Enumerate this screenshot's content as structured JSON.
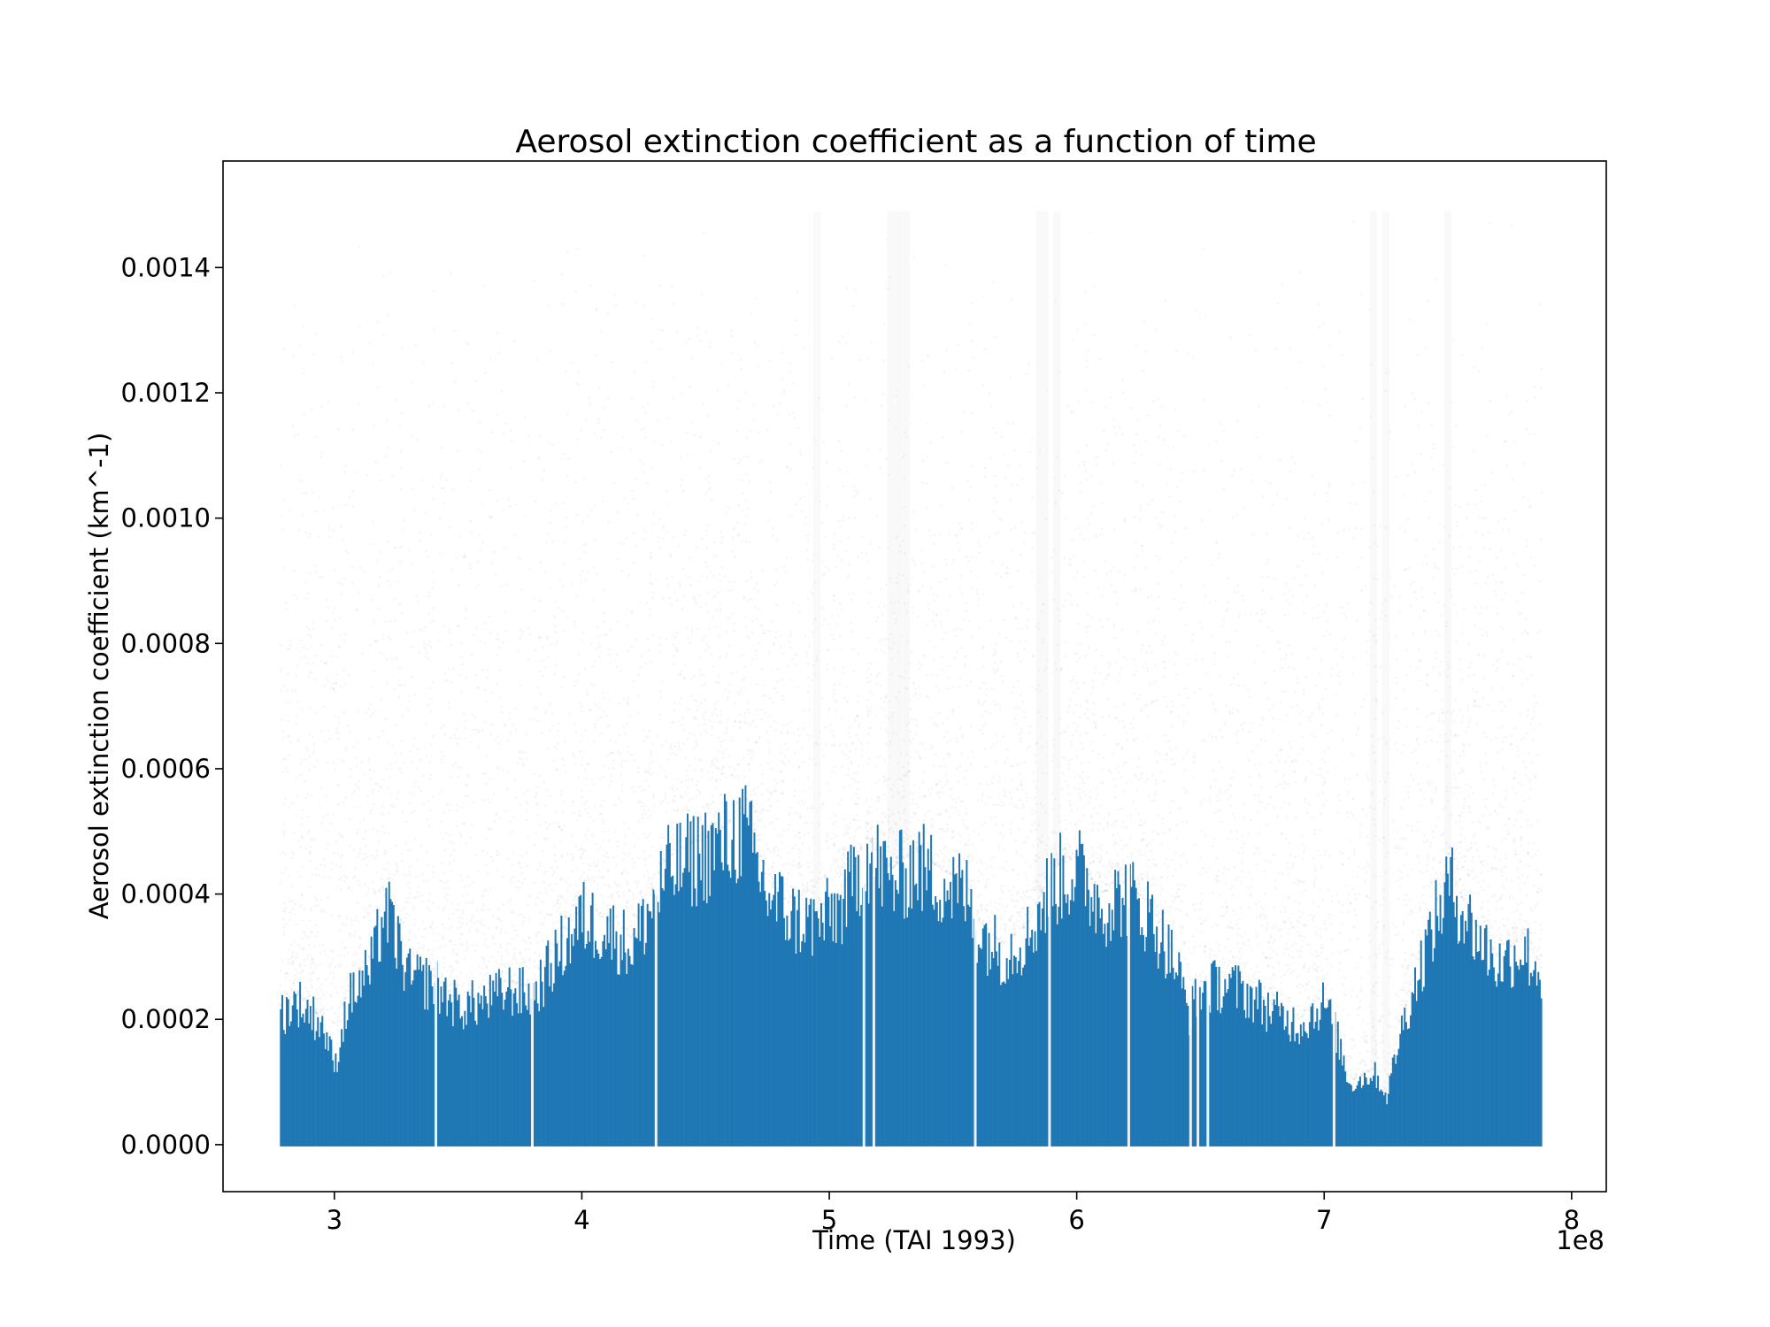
{
  "chart_data": {
    "type": "scatter",
    "title": "Aerosol extinction coefficient as a function of time",
    "xlabel": "Time (TAI 1993)",
    "ylabel": "Aerosol extinction coefficient (km^-1)",
    "x_offset_text": "1e8",
    "xlim": [
      2.55,
      8.14
    ],
    "ylim": [
      -7.5e-05,
      0.00157
    ],
    "x_ticks": [
      3,
      4,
      5,
      6,
      7,
      8
    ],
    "x_tick_labels": [
      "3",
      "4",
      "5",
      "6",
      "7",
      "8"
    ],
    "y_ticks": [
      0.0,
      0.0002,
      0.0004,
      0.0006,
      0.0008,
      0.001,
      0.0012,
      0.0014
    ],
    "y_tick_labels": [
      "0.0000",
      "0.0002",
      "0.0004",
      "0.0006",
      "0.0008",
      "0.0010",
      "0.0012",
      "0.0014"
    ],
    "grid": false,
    "series_color": "#1f77b4",
    "outlier_color": "#808080",
    "data_range": {
      "x_min": 2.78,
      "x_max": 7.88,
      "y_min": 0.0,
      "y_clip": 0.00149
    },
    "dense_envelope": {
      "x": [
        2.78,
        2.85,
        2.95,
        3.0,
        3.05,
        3.15,
        3.2,
        3.3,
        3.4,
        3.5,
        3.6,
        3.7,
        3.8,
        3.9,
        4.0,
        4.1,
        4.2,
        4.3,
        4.35,
        4.45,
        4.55,
        4.65,
        4.75,
        4.85,
        4.95,
        5.05,
        5.15,
        5.25,
        5.35,
        5.45,
        5.55,
        5.6,
        5.7,
        5.8,
        5.9,
        6.0,
        6.1,
        6.2,
        6.3,
        6.4,
        6.45,
        6.5,
        6.6,
        6.7,
        6.8,
        6.9,
        7.0,
        7.05,
        7.1,
        7.2,
        7.25,
        7.3,
        7.4,
        7.5,
        7.6,
        7.7,
        7.8,
        7.88
      ],
      "y": [
        0.00022,
        0.00024,
        0.0002,
        0.00013,
        0.00024,
        0.0003,
        0.0004,
        0.00028,
        0.00027,
        0.00023,
        0.00024,
        0.00026,
        0.00025,
        0.00032,
        0.00038,
        0.00036,
        0.00033,
        0.00042,
        0.00046,
        0.00048,
        0.0005,
        0.00053,
        0.00042,
        0.00038,
        0.00037,
        0.0004,
        0.00049,
        0.00044,
        0.00047,
        0.00044,
        0.00042,
        0.00036,
        0.00032,
        0.00035,
        0.00044,
        0.00046,
        0.0004,
        0.00042,
        0.00038,
        0.0003,
        0.00022,
        0.00026,
        0.00027,
        0.00025,
        0.00022,
        0.0002,
        0.00024,
        0.00018,
        0.0001,
        0.00012,
        8e-05,
        0.00018,
        0.00032,
        0.00044,
        0.00036,
        0.0003,
        0.00033,
        0.00028
      ]
    },
    "gap_x": [
      3.41,
      3.8,
      4.3,
      5.14,
      5.18,
      5.59,
      5.89,
      6.21,
      6.46,
      6.49,
      6.53,
      7.04
    ]
  }
}
